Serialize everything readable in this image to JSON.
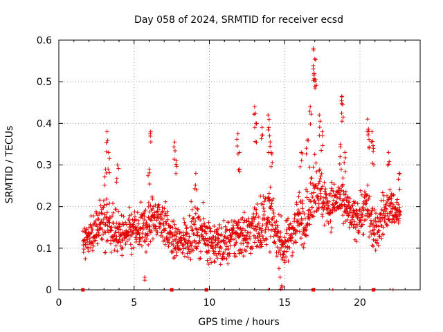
{
  "chart_data": {
    "type": "scatter",
    "title": "Day 058 of 2024, SRMTID for receiver ecsd",
    "xlabel": "GPS time / hours",
    "ylabel": "SRMTID / TECUs",
    "xlim": [
      0,
      24
    ],
    "ylim": [
      0,
      0.6
    ],
    "xticks": [
      0,
      5,
      10,
      15,
      20
    ],
    "yticks": [
      0,
      0.1,
      0.2,
      0.3,
      0.4,
      0.5,
      0.6
    ],
    "xtick_labels": [
      "0",
      "5",
      "10",
      "15",
      "20"
    ],
    "ytick_labels": [
      "0",
      "0.1",
      "0.2",
      "0.3",
      "0.4",
      "0.5",
      "0.6"
    ],
    "grid": true,
    "marker": "+",
    "color": "#e00000",
    "data_span_hours": [
      1.6,
      22.7
    ],
    "bottom_markers_x": [
      1.6,
      7.5,
      9.8,
      16.9,
      20.9
    ],
    "bottom_ticks_x": [
      13.9,
      18.2,
      22.2
    ],
    "envelope": {
      "x": [
        1.6,
        2.5,
        3.0,
        3.5,
        4.0,
        4.5,
        5.0,
        5.5,
        6.0,
        6.5,
        7.0,
        7.5,
        8.0,
        8.5,
        9.0,
        9.5,
        10.0,
        10.5,
        11.0,
        11.5,
        12.0,
        12.5,
        13.0,
        13.5,
        14.0,
        14.5,
        15.0,
        15.5,
        16.0,
        16.5,
        17.0,
        17.5,
        18.0,
        18.5,
        19.0,
        19.5,
        20.0,
        20.5,
        21.0,
        21.5,
        22.0,
        22.7
      ],
      "median": [
        0.12,
        0.14,
        0.17,
        0.15,
        0.13,
        0.13,
        0.14,
        0.14,
        0.16,
        0.18,
        0.16,
        0.12,
        0.11,
        0.13,
        0.14,
        0.14,
        0.12,
        0.11,
        0.11,
        0.12,
        0.14,
        0.13,
        0.15,
        0.16,
        0.18,
        0.13,
        0.1,
        0.14,
        0.18,
        0.17,
        0.26,
        0.22,
        0.2,
        0.22,
        0.2,
        0.17,
        0.18,
        0.2,
        0.13,
        0.18,
        0.2,
        0.18
      ],
      "spread": [
        0.03,
        0.05,
        0.06,
        0.05,
        0.05,
        0.05,
        0.05,
        0.05,
        0.06,
        0.05,
        0.05,
        0.04,
        0.04,
        0.05,
        0.05,
        0.05,
        0.05,
        0.05,
        0.05,
        0.05,
        0.06,
        0.05,
        0.06,
        0.06,
        0.07,
        0.05,
        0.05,
        0.05,
        0.06,
        0.06,
        0.07,
        0.06,
        0.05,
        0.05,
        0.05,
        0.04,
        0.05,
        0.06,
        0.05,
        0.05,
        0.04,
        0.04
      ]
    },
    "spikes": [
      {
        "x": 3.2,
        "y": 0.38
      },
      {
        "x": 3.3,
        "y": 0.33
      },
      {
        "x": 3.1,
        "y": 0.29
      },
      {
        "x": 3.9,
        "y": 0.3
      },
      {
        "x": 6.1,
        "y": 0.38
      },
      {
        "x": 6.0,
        "y": 0.29
      },
      {
        "x": 7.7,
        "y": 0.355
      },
      {
        "x": 7.8,
        "y": 0.31
      },
      {
        "x": 5.7,
        "y": 0.03
      },
      {
        "x": 9.1,
        "y": 0.28
      },
      {
        "x": 11.9,
        "y": 0.375
      },
      {
        "x": 12.0,
        "y": 0.33
      },
      {
        "x": 13.0,
        "y": 0.44
      },
      {
        "x": 13.1,
        "y": 0.4
      },
      {
        "x": 13.5,
        "y": 0.39
      },
      {
        "x": 13.9,
        "y": 0.42
      },
      {
        "x": 14.0,
        "y": 0.37
      },
      {
        "x": 14.1,
        "y": 0.33
      },
      {
        "x": 14.8,
        "y": 0.01
      },
      {
        "x": 14.7,
        "y": 0.03
      },
      {
        "x": 16.1,
        "y": 0.33
      },
      {
        "x": 16.5,
        "y": 0.36
      },
      {
        "x": 16.7,
        "y": 0.44
      },
      {
        "x": 16.9,
        "y": 0.58
      },
      {
        "x": 17.0,
        "y": 0.555
      },
      {
        "x": 16.95,
        "y": 0.52
      },
      {
        "x": 17.05,
        "y": 0.505
      },
      {
        "x": 17.3,
        "y": 0.42
      },
      {
        "x": 17.5,
        "y": 0.38
      },
      {
        "x": 18.8,
        "y": 0.465
      },
      {
        "x": 18.85,
        "y": 0.445
      },
      {
        "x": 18.7,
        "y": 0.35
      },
      {
        "x": 19.0,
        "y": 0.33
      },
      {
        "x": 20.5,
        "y": 0.41
      },
      {
        "x": 20.6,
        "y": 0.38
      },
      {
        "x": 20.8,
        "y": 0.38
      },
      {
        "x": 20.9,
        "y": 0.34
      },
      {
        "x": 21.9,
        "y": 0.33
      },
      {
        "x": 22.6,
        "y": 0.28
      }
    ]
  }
}
